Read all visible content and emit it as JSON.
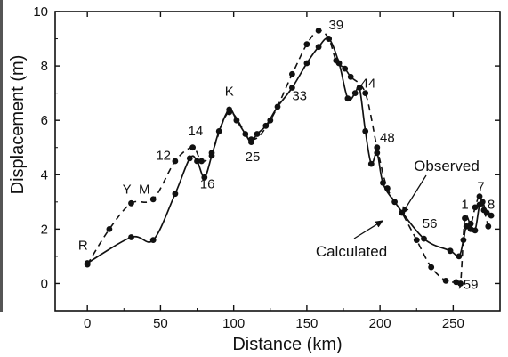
{
  "chart_data": {
    "type": "line",
    "xlabel": "Distance (km)",
    "ylabel": "Displacement (m)",
    "xlim": [
      -22,
      282
    ],
    "ylim": [
      -1,
      10
    ],
    "x_ticks": [
      0,
      50,
      100,
      150,
      200,
      250
    ],
    "y_ticks": [
      0,
      2,
      4,
      6,
      8,
      10
    ],
    "grid": false,
    "series": [
      {
        "name": "Observed",
        "style": "solid",
        "color": "#111111",
        "points": [
          [
            0,
            0.75
          ],
          [
            30,
            1.7
          ],
          [
            45,
            1.6
          ],
          [
            60,
            3.3
          ],
          [
            70,
            4.6
          ],
          [
            75,
            4.5
          ],
          [
            80,
            3.9
          ],
          [
            85,
            4.7
          ],
          [
            90,
            5.6
          ],
          [
            97,
            6.4
          ],
          [
            102,
            6.0
          ],
          [
            108,
            5.5
          ],
          [
            112,
            5.2
          ],
          [
            116,
            5.5
          ],
          [
            122,
            5.8
          ],
          [
            130,
            6.5
          ],
          [
            140,
            7.2
          ],
          [
            150,
            8.1
          ],
          [
            158,
            8.7
          ],
          [
            165,
            9.0
          ],
          [
            172,
            8.1
          ],
          [
            178,
            6.8
          ],
          [
            183,
            7.0
          ],
          [
            186,
            7.2
          ],
          [
            190,
            5.6
          ],
          [
            194,
            4.4
          ],
          [
            198,
            4.8
          ],
          [
            202,
            3.7
          ],
          [
            210,
            3.0
          ],
          [
            230,
            1.65
          ],
          [
            248,
            1.2
          ],
          [
            254,
            1.0
          ],
          [
            257,
            1.6
          ],
          [
            259,
            2.1
          ],
          [
            262,
            2.0
          ],
          [
            265,
            1.95
          ],
          [
            268,
            2.9
          ],
          [
            270,
            3.0
          ],
          [
            273,
            2.6
          ],
          [
            276,
            2.5
          ]
        ]
      },
      {
        "name": "Calculated",
        "style": "dashed",
        "color": "#111111",
        "points": [
          [
            0,
            0.7
          ],
          [
            15,
            2.0
          ],
          [
            30,
            2.95
          ],
          [
            45,
            3.1
          ],
          [
            60,
            4.5
          ],
          [
            72,
            5.0
          ],
          [
            78,
            4.5
          ],
          [
            85,
            4.8
          ],
          [
            97,
            6.3
          ],
          [
            112,
            5.3
          ],
          [
            125,
            6.0
          ],
          [
            140,
            7.7
          ],
          [
            150,
            8.8
          ],
          [
            158,
            9.3
          ],
          [
            165,
            9.0
          ],
          [
            170,
            8.2
          ],
          [
            176,
            7.9
          ],
          [
            180,
            7.6
          ],
          [
            190,
            7.0
          ],
          [
            198,
            5.0
          ],
          [
            205,
            3.5
          ],
          [
            215,
            2.6
          ],
          [
            225,
            1.6
          ],
          [
            235,
            0.6
          ],
          [
            245,
            0.1
          ],
          [
            252,
            0.05
          ],
          [
            255,
            0.0
          ],
          [
            258,
            2.4
          ],
          [
            262,
            2.2
          ],
          [
            265,
            2.8
          ],
          [
            268,
            3.2
          ],
          [
            271,
            2.7
          ],
          [
            274,
            2.1
          ]
        ]
      }
    ],
    "annotations": [
      {
        "text": "R",
        "x": -3,
        "y": 1.25
      },
      {
        "text": "Y",
        "x": 27,
        "y": 3.3
      },
      {
        "text": "M",
        "x": 39,
        "y": 3.3
      },
      {
        "text": "12",
        "x": 52,
        "y": 4.55
      },
      {
        "text": "14",
        "x": 74,
        "y": 5.45
      },
      {
        "text": "16",
        "x": 82,
        "y": 3.5
      },
      {
        "text": "K",
        "x": 97,
        "y": 6.9
      },
      {
        "text": "25",
        "x": 113,
        "y": 4.5
      },
      {
        "text": "33",
        "x": 145,
        "y": 6.75
      },
      {
        "text": "39",
        "x": 170,
        "y": 9.35
      },
      {
        "text": "44",
        "x": 192,
        "y": 7.2
      },
      {
        "text": "48",
        "x": 205,
        "y": 5.2
      },
      {
        "text": "56",
        "x": 234,
        "y": 2.05
      },
      {
        "text": "59",
        "x": 262,
        "y": -0.2
      },
      {
        "text": "1",
        "x": 258,
        "y": 2.75
      },
      {
        "text": "7",
        "x": 269,
        "y": 3.4
      },
      {
        "text": "8",
        "x": 276,
        "y": 2.75
      }
    ],
    "legend": [
      {
        "text": "Observed",
        "series": "Observed"
      },
      {
        "text": "Calculated",
        "series": "Calculated"
      }
    ]
  }
}
